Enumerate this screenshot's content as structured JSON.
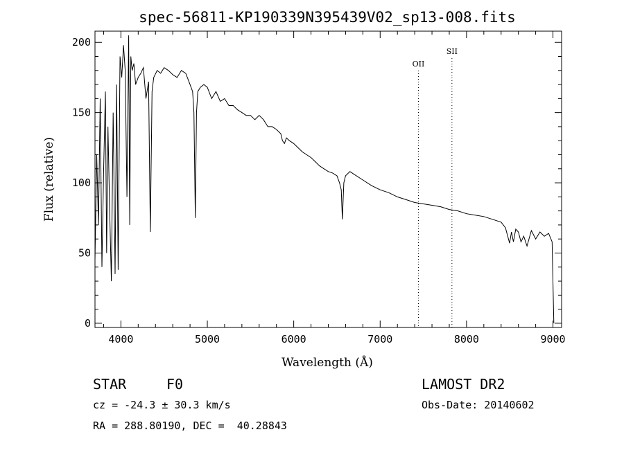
{
  "chart_data": {
    "type": "line",
    "title": "spec-56811-KP190339N395439V02_sp13-008.fits",
    "xlabel": "Wavelength (Å)",
    "ylabel": "Flux (relative)",
    "xlim": [
      3700,
      9100
    ],
    "ylim": [
      -3,
      208
    ],
    "xticks": [
      4000,
      5000,
      6000,
      7000,
      8000,
      9000
    ],
    "yticks": [
      0,
      50,
      100,
      150,
      200
    ],
    "grid": false,
    "series": [
      {
        "x": [
          3700,
          3720,
          3740,
          3760,
          3780,
          3800,
          3820,
          3835,
          3850,
          3870,
          3889,
          3910,
          3933,
          3950,
          3968,
          3990,
          4010,
          4030,
          4050,
          4070,
          4090,
          4102,
          4115,
          4130,
          4150,
          4170,
          4200,
          4230,
          4260,
          4290,
          4320,
          4340,
          4360,
          4380,
          4420,
          4460,
          4500,
          4550,
          4600,
          4650,
          4700,
          4750,
          4800,
          4830,
          4845,
          4861,
          4875,
          4890,
          4920,
          4960,
          5000,
          5050,
          5100,
          5150,
          5200,
          5250,
          5300,
          5350,
          5400,
          5450,
          5500,
          5550,
          5600,
          5650,
          5700,
          5750,
          5800,
          5850,
          5870,
          5893,
          5915,
          5950,
          6000,
          6050,
          6100,
          6150,
          6200,
          6250,
          6300,
          6350,
          6400,
          6450,
          6500,
          6530,
          6550,
          6563,
          6580,
          6600,
          6650,
          6700,
          6800,
          6900,
          7000,
          7100,
          7200,
          7300,
          7400,
          7500,
          7600,
          7700,
          7800,
          7900,
          8000,
          8100,
          8200,
          8300,
          8400,
          8450,
          8498,
          8520,
          8542,
          8570,
          8600,
          8630,
          8662,
          8700,
          8750,
          8800,
          8850,
          8900,
          8950,
          8990,
          9000,
          9010
        ],
        "values": [
          45,
          120,
          70,
          160,
          40,
          110,
          165,
          50,
          140,
          80,
          30,
          150,
          35,
          170,
          38,
          190,
          175,
          198,
          180,
          90,
          205,
          70,
          190,
          180,
          185,
          170,
          175,
          178,
          182,
          160,
          172,
          65,
          165,
          175,
          180,
          178,
          182,
          180,
          177,
          175,
          180,
          178,
          170,
          165,
          150,
          75,
          150,
          165,
          168,
          170,
          168,
          160,
          165,
          158,
          160,
          155,
          155,
          152,
          150,
          148,
          148,
          145,
          148,
          145,
          140,
          140,
          138,
          135,
          130,
          128,
          132,
          130,
          128,
          125,
          122,
          120,
          118,
          115,
          112,
          110,
          108,
          107,
          105,
          100,
          95,
          74,
          100,
          105,
          108,
          106,
          102,
          98,
          95,
          93,
          90,
          88,
          86,
          85,
          84,
          83,
          81,
          80,
          78,
          77,
          76,
          74,
          72,
          68,
          57,
          65,
          58,
          67,
          65,
          58,
          62,
          55,
          66,
          60,
          65,
          62,
          64,
          58,
          30,
          0
        ]
      }
    ],
    "annotations": [
      {
        "label": "OII",
        "x": 7443
      },
      {
        "label": "SII",
        "x": 7831
      }
    ]
  },
  "info": {
    "object_class": "STAR",
    "subclass": "F0",
    "survey": "LAMOST DR2",
    "redshift": "cz = -24.3 ± 30.3 km/s",
    "obs_date": "Obs-Date: 20140602",
    "coords": "RA = 288.80190, DEC =  40.28843"
  }
}
